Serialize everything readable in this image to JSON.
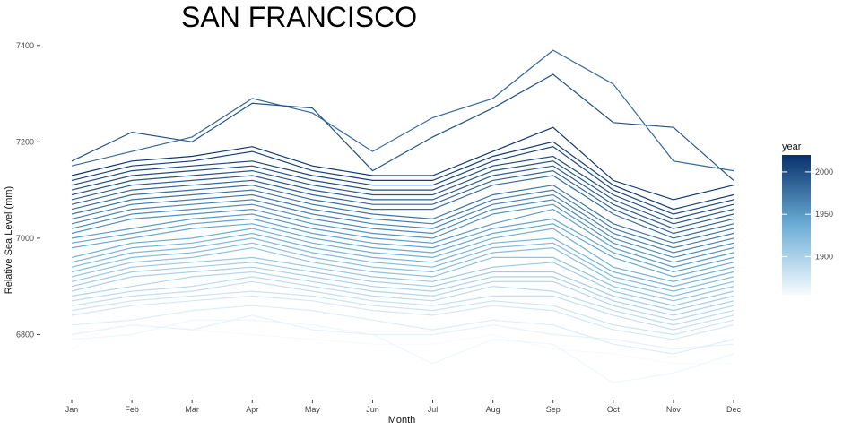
{
  "chart_data": {
    "type": "line",
    "title": "SAN FRANCISCO",
    "xlabel": "Month",
    "ylabel": "Relative Sea Level (mm)",
    "categories": [
      "Jan",
      "Feb",
      "Mar",
      "Apr",
      "May",
      "Jun",
      "Jul",
      "Aug",
      "Sep",
      "Oct",
      "Nov",
      "Dec"
    ],
    "yticks": [
      6800,
      7000,
      7200,
      7400
    ],
    "ylim": [
      6680,
      7420
    ],
    "grid": false,
    "legend": {
      "title": "year",
      "placement": "right",
      "ticks": [
        1900,
        1950,
        2000
      ],
      "range": [
        1855,
        2020
      ]
    },
    "colors": {
      "low": "#f7fbff",
      "mid": "#6baed6",
      "high": "#08306b"
    },
    "series_note": "one line per year",
    "series": [
      {
        "year": 1855,
        "values": [
          6770,
          6840,
          6810,
          6800,
          6790,
          6780,
          6780,
          6800,
          6770,
          6760,
          6740,
          6740
        ]
      },
      {
        "year": 1860,
        "values": [
          6790,
          6800,
          6830,
          6830,
          6820,
          6800,
          6740,
          6790,
          6780,
          6700,
          6720,
          6760
        ]
      },
      {
        "year": 1865,
        "values": [
          6800,
          6820,
          6810,
          6840,
          6810,
          6800,
          6800,
          6820,
          6800,
          6790,
          6770,
          6780
        ]
      },
      {
        "year": 1870,
        "values": [
          6820,
          6830,
          6850,
          6860,
          6850,
          6830,
          6810,
          6830,
          6820,
          6780,
          6760,
          6790
        ]
      },
      {
        "year": 1875,
        "values": [
          6840,
          6860,
          6870,
          6880,
          6870,
          6850,
          6840,
          6860,
          6850,
          6810,
          6790,
          6820
        ]
      },
      {
        "year": 1880,
        "values": [
          6850,
          6870,
          6880,
          6890,
          6880,
          6860,
          6850,
          6870,
          6860,
          6820,
          6800,
          6830
        ]
      },
      {
        "year": 1885,
        "values": [
          6860,
          6880,
          6890,
          6910,
          6890,
          6870,
          6860,
          6880,
          6880,
          6840,
          6810,
          6840
        ]
      },
      {
        "year": 1890,
        "values": [
          6870,
          6890,
          6900,
          6920,
          6900,
          6880,
          6870,
          6900,
          6890,
          6850,
          6820,
          6850
        ]
      },
      {
        "year": 1895,
        "values": [
          6880,
          6900,
          6920,
          6930,
          6910,
          6890,
          6880,
          6910,
          6910,
          6860,
          6830,
          6860
        ]
      },
      {
        "year": 1900,
        "values": [
          6890,
          6920,
          6930,
          6940,
          6920,
          6900,
          6890,
          6920,
          6920,
          6870,
          6840,
          6870
        ]
      },
      {
        "year": 1905,
        "values": [
          6900,
          6930,
          6940,
          6950,
          6930,
          6910,
          6900,
          6930,
          6930,
          6880,
          6850,
          6880
        ]
      },
      {
        "year": 1910,
        "values": [
          6910,
          6940,
          6950,
          6960,
          6940,
          6920,
          6910,
          6940,
          6950,
          6890,
          6860,
          6890
        ]
      },
      {
        "year": 1915,
        "values": [
          6920,
          6950,
          6960,
          6980,
          6950,
          6930,
          6920,
          6960,
          6960,
          6900,
          6870,
          6900
        ]
      },
      {
        "year": 1920,
        "values": [
          6930,
          6960,
          6970,
          6990,
          6960,
          6940,
          6930,
          6970,
          6980,
          6910,
          6880,
          6910
        ]
      },
      {
        "year": 1925,
        "values": [
          6940,
          6970,
          6980,
          7000,
          6970,
          6950,
          6940,
          6980,
          6990,
          6920,
          6890,
          6920
        ]
      },
      {
        "year": 1930,
        "values": [
          6950,
          6980,
          6990,
          7010,
          6980,
          6960,
          6950,
          6990,
          7000,
          6930,
          6900,
          6930
        ]
      },
      {
        "year": 1935,
        "values": [
          6960,
          6990,
          7000,
          7020,
          6990,
          6970,
          6960,
          7000,
          7020,
          6940,
          6910,
          6940
        ]
      },
      {
        "year": 1940,
        "values": [
          6980,
          7000,
          7020,
          7030,
          7000,
          6980,
          6970,
          7010,
          7030,
          6960,
          6920,
          6950
        ]
      },
      {
        "year": 1945,
        "values": [
          6990,
          7010,
          7030,
          7040,
          7010,
          6990,
          6980,
          7020,
          7040,
          6970,
          6930,
          6960
        ]
      },
      {
        "year": 1950,
        "values": [
          7000,
          7020,
          7040,
          7050,
          7020,
          7000,
          6990,
          7030,
          7060,
          6980,
          6940,
          6970
        ]
      },
      {
        "year": 1955,
        "values": [
          7010,
          7040,
          7050,
          7060,
          7030,
          7010,
          7000,
          7050,
          7070,
          6990,
          6950,
          6980
        ]
      },
      {
        "year": 1960,
        "values": [
          7020,
          7050,
          7060,
          7070,
          7040,
          7020,
          7010,
          7060,
          7080,
          7000,
          6960,
          6990
        ]
      },
      {
        "year": 1965,
        "values": [
          7030,
          7060,
          7070,
          7080,
          7050,
          7030,
          7020,
          7070,
          7090,
          7010,
          6970,
          7000
        ]
      },
      {
        "year": 1970,
        "values": [
          7040,
          7070,
          7080,
          7090,
          7060,
          7040,
          7030,
          7080,
          7100,
          7020,
          6980,
          7010
        ]
      },
      {
        "year": 1975,
        "values": [
          7050,
          7080,
          7090,
          7100,
          7070,
          7050,
          7040,
          7090,
          7110,
          7030,
          6990,
          7020
        ]
      },
      {
        "year": 1980,
        "values": [
          7060,
          7090,
          7100,
          7110,
          7080,
          7060,
          7060,
          7110,
          7130,
          7050,
          7000,
          7030
        ]
      },
      {
        "year": 1983,
        "values": [
          7150,
          7180,
          7210,
          7290,
          7260,
          7180,
          7250,
          7290,
          7390,
          7320,
          7160,
          7140
        ]
      },
      {
        "year": 1985,
        "values": [
          7070,
          7100,
          7110,
          7120,
          7090,
          7070,
          7070,
          7120,
          7140,
          7060,
          7010,
          7040
        ]
      },
      {
        "year": 1990,
        "values": [
          7080,
          7110,
          7120,
          7130,
          7100,
          7080,
          7080,
          7130,
          7150,
          7070,
          7020,
          7050
        ]
      },
      {
        "year": 1995,
        "values": [
          7090,
          7120,
          7130,
          7140,
          7110,
          7090,
          7090,
          7140,
          7160,
          7080,
          7030,
          7060
        ]
      },
      {
        "year": 1998,
        "values": [
          7160,
          7220,
          7200,
          7280,
          7270,
          7140,
          7210,
          7270,
          7340,
          7240,
          7230,
          7120
        ]
      },
      {
        "year": 2000,
        "values": [
          7100,
          7130,
          7140,
          7150,
          7120,
          7100,
          7100,
          7150,
          7170,
          7090,
          7040,
          7070
        ]
      },
      {
        "year": 2005,
        "values": [
          7110,
          7140,
          7150,
          7160,
          7130,
          7110,
          7110,
          7160,
          7190,
          7100,
          7050,
          7080
        ]
      },
      {
        "year": 2010,
        "values": [
          7120,
          7150,
          7160,
          7180,
          7140,
          7120,
          7120,
          7170,
          7200,
          7110,
          7060,
          7090
        ]
      },
      {
        "year": 2015,
        "values": [
          7130,
          7160,
          7170,
          7190,
          7150,
          7130,
          7130,
          7180,
          7230,
          7120,
          7080,
          7110
        ]
      }
    ]
  }
}
